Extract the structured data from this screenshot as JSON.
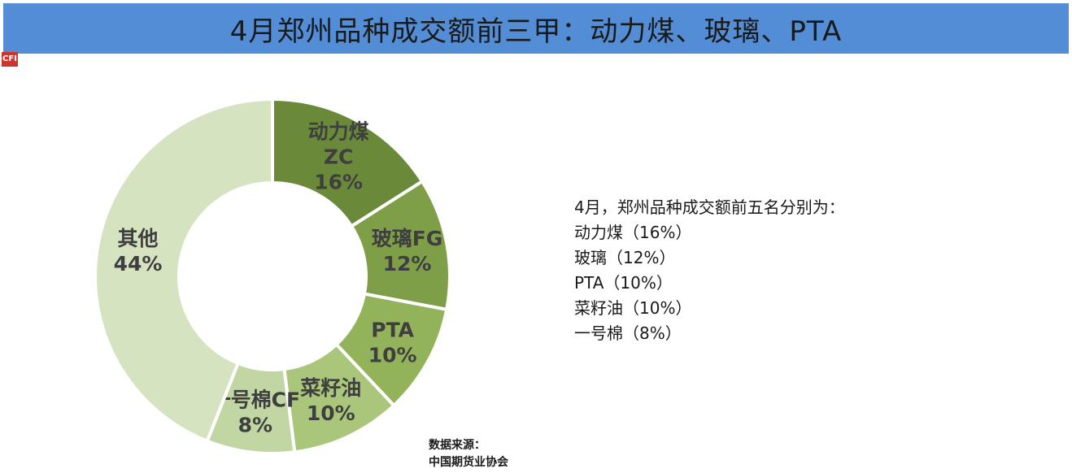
{
  "title": "4月郑州品种成交额前三甲：动力煤、玻璃、PTA",
  "logo_text": "CFI",
  "chart_data": {
    "type": "pie",
    "variant": "donut",
    "slices": [
      {
        "label_lines": [
          "动力煤",
          "ZC",
          "16%"
        ],
        "value": 16,
        "color": "#6a8a3a"
      },
      {
        "label_lines": [
          "玻璃FG",
          "12%"
        ],
        "value": 12,
        "color": "#7f9e48"
      },
      {
        "label_lines": [
          "PTA",
          "10%"
        ],
        "value": 10,
        "color": "#92b35a"
      },
      {
        "label_lines": [
          "菜籽油",
          "10%"
        ],
        "value": 10,
        "color": "#a9c67b"
      },
      {
        "label_lines": [
          "一号棉CF",
          "8%"
        ],
        "value": 8,
        "color": "#c2d6a4"
      },
      {
        "label_lines": [
          "其他",
          "44%"
        ],
        "value": 44,
        "color": "#d5e3c1"
      }
    ]
  },
  "summary": {
    "heading": "4月，郑州品种成交额前五名分别为：",
    "items": [
      "动力煤（16%）",
      "玻璃（12%）",
      "PTA（10%）",
      "菜籽油（10%）",
      "一号棉（8%）"
    ]
  },
  "source": {
    "label": "数据来源：",
    "name": "中国期货业协会"
  }
}
